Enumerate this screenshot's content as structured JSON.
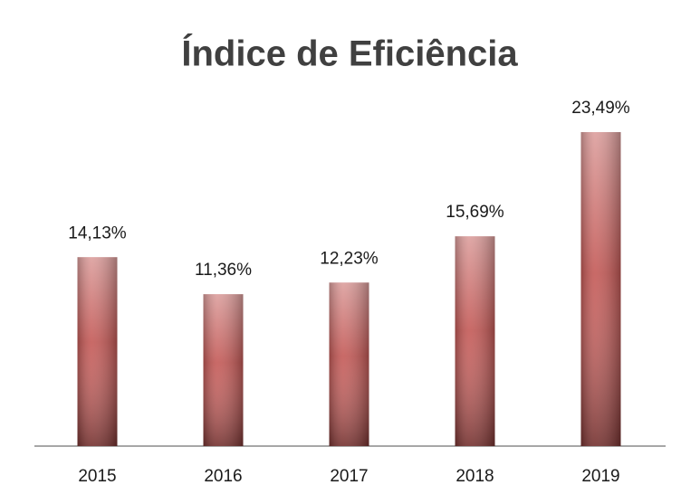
{
  "chart_data": {
    "type": "bar",
    "title": "Índice de Eficiência",
    "categories": [
      "2015",
      "2016",
      "2017",
      "2018",
      "2019"
    ],
    "values": [
      14.13,
      11.36,
      12.23,
      15.69,
      23.49
    ],
    "value_labels": [
      "14,13%",
      "11,36%",
      "12,23%",
      "15,69%",
      "23,49%"
    ],
    "color": "#c0504d"
  }
}
